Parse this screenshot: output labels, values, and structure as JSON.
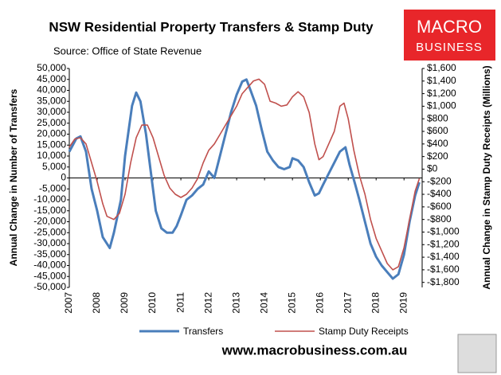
{
  "chart_data": {
    "type": "line",
    "title": "NSW Residential Property Transfers & Stamp Duty",
    "subtitle": "Source: Office of State Revenue",
    "y_label": "Annual Change in Number of Transfers",
    "y2_label": "Annual Change in Stamp Duty Receipts (Millions)",
    "logo": [
      "MACRO",
      "BUSINESS"
    ],
    "footer": "www.macrobusiness.com.au",
    "xlim": [
      2007,
      2019.65
    ],
    "xticks": [
      2007,
      2008,
      2009,
      2010,
      2011,
      2012,
      2013,
      2014,
      2015,
      2016,
      2017,
      2018,
      2019
    ],
    "ylim": [
      -50000,
      50000
    ],
    "yticks": [
      {
        "value": 50000,
        "label": "50,000"
      },
      {
        "value": 45000,
        "label": "45,000"
      },
      {
        "value": 40000,
        "label": "40,000"
      },
      {
        "value": 35000,
        "label": "35,000"
      },
      {
        "value": 30000,
        "label": "30,000"
      },
      {
        "value": 25000,
        "label": "25,000"
      },
      {
        "value": 20000,
        "label": "20,000"
      },
      {
        "value": 15000,
        "label": "15,000"
      },
      {
        "value": 10000,
        "label": "10,000"
      },
      {
        "value": 5000,
        "label": "5,000"
      },
      0,
      {
        "value": -5000,
        "label": "-5,000"
      },
      {
        "value": -10000,
        "label": "-10,000"
      },
      {
        "value": -15000,
        "label": "-15,000"
      },
      {
        "value": -20000,
        "label": "-20,000"
      },
      {
        "value": -25000,
        "label": "-25,000"
      },
      {
        "value": -30000,
        "label": "-30,000"
      },
      {
        "value": -35000,
        "label": "-35,000"
      },
      {
        "value": -40000,
        "label": "-40,000"
      },
      {
        "value": -45000,
        "label": "-45,000"
      },
      {
        "value": -50000,
        "label": "-50,000"
      }
    ],
    "y2lim": [
      -1880,
      1600
    ],
    "y2ticks": [
      {
        "value": 1600,
        "label": "$1,600"
      },
      {
        "value": 1400,
        "label": "$1,400"
      },
      {
        "value": 1200,
        "label": "$1,200"
      },
      {
        "value": 1000,
        "label": "$1,000"
      },
      {
        "value": 800,
        "label": "$800"
      },
      {
        "value": 600,
        "label": "$600"
      },
      {
        "value": 400,
        "label": "$400"
      },
      {
        "value": 200,
        "label": "$200"
      },
      {
        "value": 0,
        "label": "$0"
      },
      {
        "value": -200,
        "label": "-$200"
      },
      {
        "value": -400,
        "label": "-$400"
      },
      {
        "value": -600,
        "label": "-$600"
      },
      {
        "value": -800,
        "label": "-$800"
      },
      {
        "value": -1000,
        "label": "-$1,000"
      },
      {
        "value": -1200,
        "label": "-$1,200"
      },
      {
        "value": -1400,
        "label": "-$1,400"
      },
      {
        "value": -1600,
        "label": "-$1,600"
      },
      {
        "value": -1800,
        "label": "-$1,800"
      }
    ],
    "series": [
      {
        "name": "Transfers",
        "color": "#4a7ebb",
        "axis": "y",
        "width": 3,
        "x": [
          2007.0,
          2007.25,
          2007.4,
          2007.6,
          2007.8,
          2008.0,
          2008.2,
          2008.45,
          2008.6,
          2008.85,
          2009.0,
          2009.25,
          2009.4,
          2009.55,
          2009.75,
          2009.95,
          2010.1,
          2010.3,
          2010.5,
          2010.7,
          2010.85,
          2011.0,
          2011.2,
          2011.4,
          2011.6,
          2011.8,
          2012.0,
          2012.2,
          2012.4,
          2012.6,
          2012.8,
          2013.0,
          2013.2,
          2013.35,
          2013.5,
          2013.7,
          2013.9,
          2014.1,
          2014.3,
          2014.5,
          2014.7,
          2014.9,
          2015.0,
          2015.2,
          2015.4,
          2015.6,
          2015.8,
          2015.95,
          2016.1,
          2016.3,
          2016.5,
          2016.7,
          2016.9,
          2017.05,
          2017.25,
          2017.4,
          2017.6,
          2017.8,
          2018.0,
          2018.2,
          2018.4,
          2018.6,
          2018.8,
          2019.0,
          2019.2,
          2019.4,
          2019.55
        ],
        "values": [
          12000,
          18000,
          19000,
          12000,
          -5000,
          -15000,
          -27000,
          -32000,
          -25000,
          -10000,
          10000,
          33000,
          39000,
          35000,
          20000,
          0,
          -15000,
          -23000,
          -25000,
          -25000,
          -22000,
          -17000,
          -10000,
          -8000,
          -5000,
          -3000,
          3000,
          0,
          10000,
          20000,
          30000,
          38000,
          44000,
          45000,
          40000,
          33000,
          22000,
          12000,
          8000,
          5000,
          4000,
          5000,
          9000,
          8000,
          5000,
          -2000,
          -8000,
          -7000,
          -3000,
          2000,
          7000,
          12000,
          14000,
          6000,
          -3000,
          -10000,
          -20000,
          -30000,
          -36000,
          -40000,
          -43000,
          -46000,
          -44000,
          -35000,
          -20000,
          -8000,
          -2000
        ]
      },
      {
        "name": "Stamp Duty Receipts",
        "color": "#c0504d",
        "axis": "y2",
        "width": 1.6,
        "x": [
          2007.0,
          2007.2,
          2007.4,
          2007.6,
          2007.8,
          2008.0,
          2008.2,
          2008.35,
          2008.6,
          2008.8,
          2009.0,
          2009.2,
          2009.4,
          2009.6,
          2009.8,
          2010.0,
          2010.2,
          2010.4,
          2010.6,
          2010.8,
          2011.0,
          2011.2,
          2011.4,
          2011.6,
          2011.8,
          2012.0,
          2012.2,
          2012.4,
          2012.6,
          2012.8,
          2013.0,
          2013.2,
          2013.4,
          2013.6,
          2013.8,
          2014.0,
          2014.2,
          2014.4,
          2014.6,
          2014.8,
          2015.0,
          2015.2,
          2015.4,
          2015.6,
          2015.8,
          2015.95,
          2016.1,
          2016.3,
          2016.5,
          2016.7,
          2016.85,
          2017.0,
          2017.2,
          2017.4,
          2017.6,
          2017.8,
          2018.0,
          2018.2,
          2018.4,
          2018.6,
          2018.8,
          2019.0,
          2019.2,
          2019.4,
          2019.55
        ],
        "values": [
          350,
          480,
          500,
          400,
          100,
          -200,
          -550,
          -750,
          -800,
          -700,
          -400,
          100,
          500,
          700,
          700,
          500,
          200,
          -100,
          -300,
          -400,
          -450,
          -400,
          -300,
          -150,
          100,
          300,
          400,
          550,
          700,
          850,
          1000,
          1200,
          1300,
          1400,
          1430,
          1350,
          1080,
          1050,
          1000,
          1020,
          1150,
          1230,
          1150,
          900,
          400,
          150,
          200,
          400,
          600,
          1000,
          1050,
          800,
          300,
          -100,
          -400,
          -800,
          -1100,
          -1300,
          -1500,
          -1600,
          -1550,
          -1250,
          -800,
          -350,
          -150
        ]
      }
    ]
  }
}
